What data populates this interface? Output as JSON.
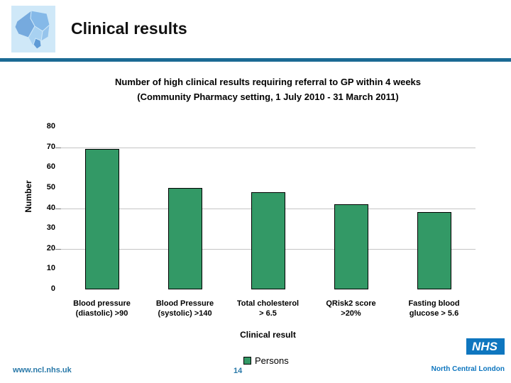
{
  "header": {
    "title": "Clinical results",
    "logo": "north-central-london-boroughs-map"
  },
  "colors": {
    "divider": "#1b6a94",
    "bar_fill": "#339966",
    "gridline": "#c4c4c4",
    "teal_text": "#2878a8",
    "nhs_blue": "#0e76bf",
    "logo_bg": "#cfe8f8"
  },
  "chart_data": {
    "type": "bar",
    "title": "Number of high clinical results requiring referral to GP within 4 weeks",
    "subtitle": "(Community Pharmacy setting, 1 July 2010 - 31 March 2011)",
    "categories": [
      "Blood pressure\n(diastolic) >90",
      "Blood Pressure\n(systolic) >140",
      "Total cholesterol\n> 6.5",
      "QRisk2 score\n>20%",
      "Fasting blood\nglucose > 5.6"
    ],
    "values": [
      69,
      50,
      48,
      42,
      38
    ],
    "series": [
      {
        "name": "Persons",
        "values": [
          69,
          50,
          48,
          42,
          38
        ]
      }
    ],
    "xlabel": "Clinical result",
    "ylabel": "Number",
    "ylim": [
      0,
      80
    ],
    "yticks": [
      0,
      10,
      20,
      30,
      40,
      50,
      60,
      70,
      80
    ],
    "gridline_values": [
      20,
      40,
      70
    ],
    "legend": {
      "position": "bottom",
      "entries": [
        "Persons"
      ]
    },
    "grid": "partial-horizontal",
    "bar_color": "#339966"
  },
  "footer": {
    "website": "www.ncl.nhs.uk",
    "page_number": "14",
    "nhs_logo_text": "NHS",
    "org_name": "North Central London"
  }
}
